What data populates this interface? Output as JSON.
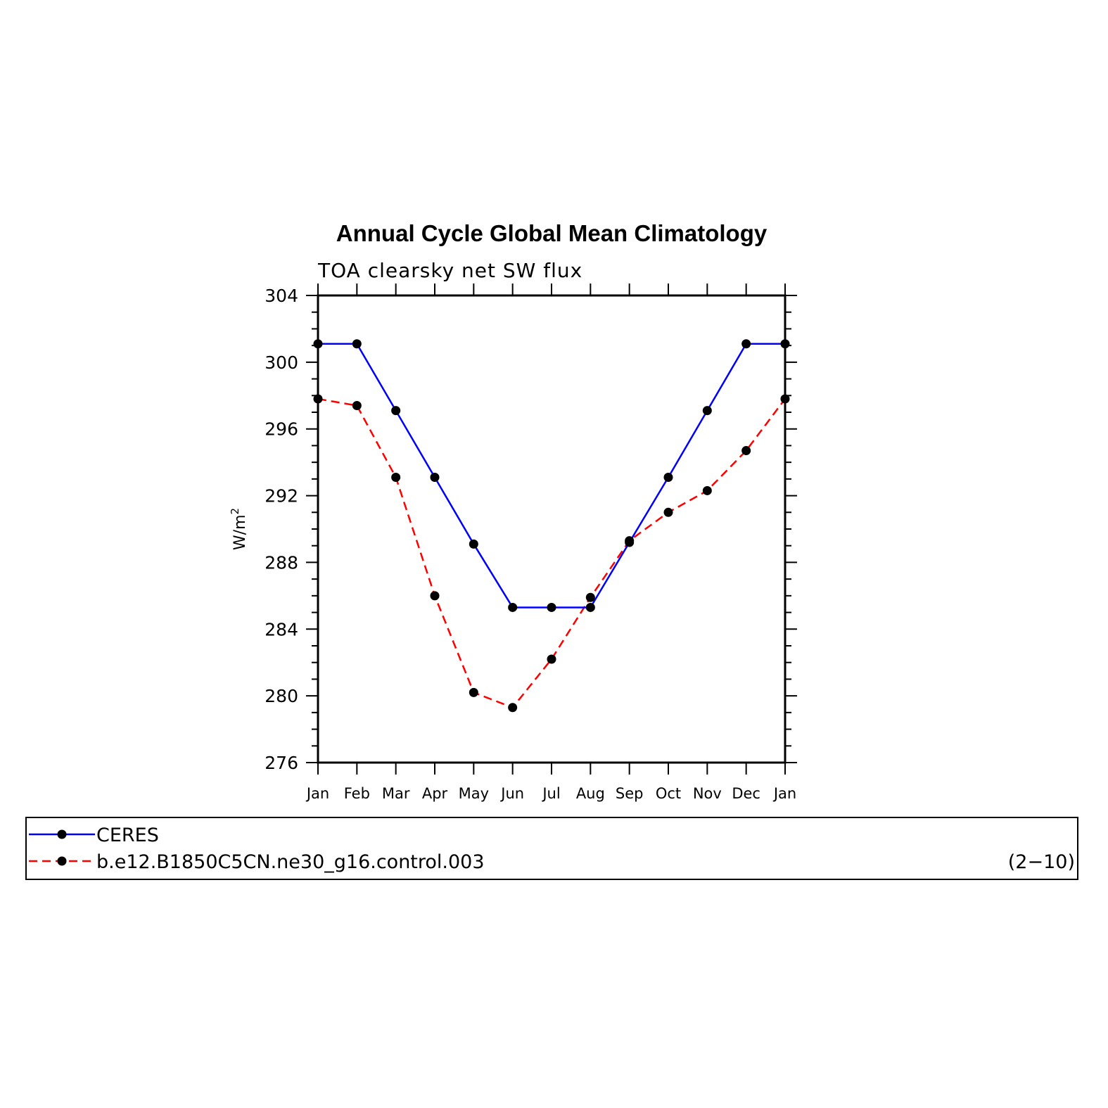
{
  "chart_data": {
    "type": "line",
    "title": "Annual Cycle Global Mean Climatology",
    "subtitle": "TOA clearsky net SW flux",
    "ylabel": "W/m²",
    "xlabel": "",
    "categories": [
      "Jan",
      "Feb",
      "Mar",
      "Apr",
      "May",
      "Jun",
      "Jul",
      "Aug",
      "Sep",
      "Oct",
      "Nov",
      "Dec",
      "Jan"
    ],
    "ylim": [
      276,
      304
    ],
    "yticks": [
      276,
      280,
      284,
      288,
      292,
      296,
      300,
      304
    ],
    "grid": false,
    "legend_placement": "bottom",
    "series": [
      {
        "name": "CERES",
        "color": "#0000ff",
        "line_style": "solid",
        "marker": "filled-circle",
        "marker_color": "#000000",
        "values": [
          301.1,
          301.1,
          297.1,
          293.1,
          289.1,
          285.3,
          285.3,
          285.3,
          289.2,
          293.1,
          297.1,
          301.1,
          301.1
        ]
      },
      {
        "name": "b.e12.B1850C5CN.ne30_g16.control.003",
        "color": "#ff0000",
        "line_style": "dashed",
        "marker": "filled-circle",
        "marker_color": "#000000",
        "values": [
          297.8,
          297.4,
          293.1,
          286.0,
          280.2,
          279.3,
          282.2,
          285.9,
          289.3,
          291.0,
          292.3,
          294.7,
          297.8
        ]
      }
    ]
  },
  "legend": {
    "note": "(2−10)"
  }
}
